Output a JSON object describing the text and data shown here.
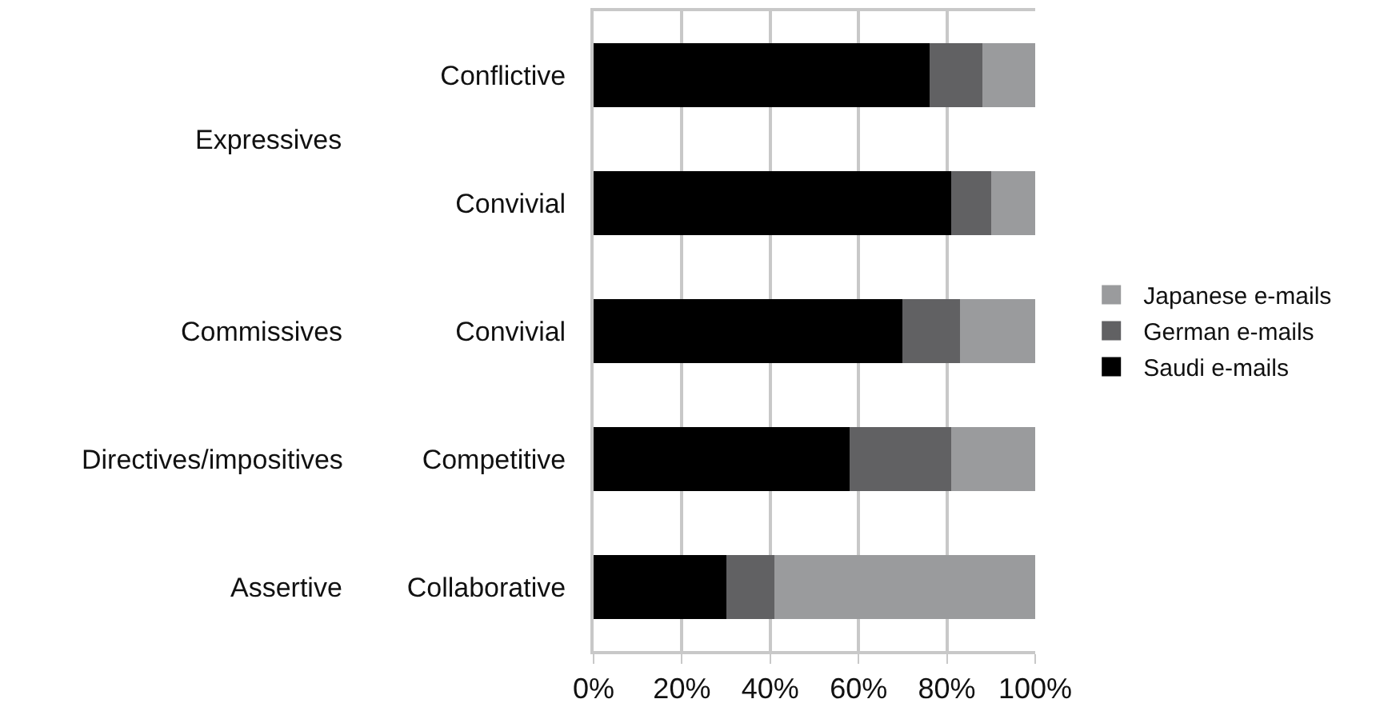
{
  "chart_data": {
    "type": "bar",
    "orientation": "horizontal",
    "stacked": true,
    "categories": [
      "Conflictive",
      "Convivial",
      "Convivial",
      "Competitive",
      "Collaborative"
    ],
    "series": [
      {
        "name": "Saudi e-mails",
        "color": "#000000",
        "values": [
          76,
          81,
          70,
          58,
          30
        ]
      },
      {
        "name": "German e-mails",
        "color": "#616163",
        "values": [
          12,
          9,
          13,
          23,
          11
        ]
      },
      {
        "name": "Japanese e-mails",
        "color": "#9a9b9d",
        "values": [
          12,
          10,
          17,
          19,
          59
        ]
      }
    ],
    "annotations": [
      "Expressives",
      "Commissives",
      "Directives/impositives",
      "Assertive"
    ],
    "xlim": [
      0,
      100
    ],
    "xticks": [
      {
        "value": 0,
        "label": "0%"
      },
      {
        "value": 20,
        "label": "20%"
      },
      {
        "value": 40,
        "label": "40%"
      },
      {
        "value": 60,
        "label": "60%"
      },
      {
        "value": 80,
        "label": "80%"
      },
      {
        "value": 100,
        "label": "100%"
      }
    ],
    "grid": "x",
    "legend": "right"
  }
}
